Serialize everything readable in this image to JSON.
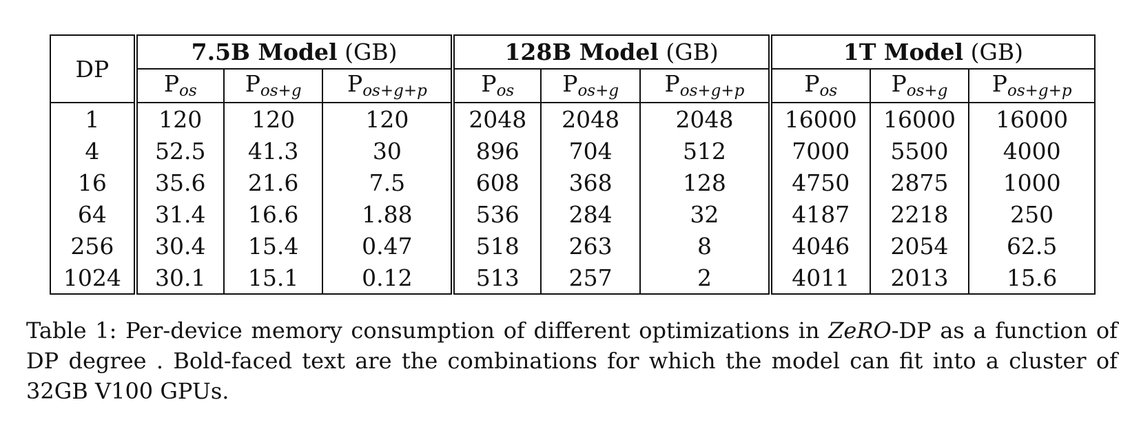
{
  "table": {
    "dp_header": "DP",
    "groups": [
      {
        "name": "7.5B Model",
        "unit": "(GB)"
      },
      {
        "name": "128B Model",
        "unit": "(GB)"
      },
      {
        "name": "1T Model",
        "unit": "(GB)"
      }
    ],
    "sub_headers": [
      {
        "base": "P",
        "sub": "os"
      },
      {
        "base": "P",
        "sub": "os+g"
      },
      {
        "base": "P",
        "sub": "os+g+p"
      }
    ],
    "rows": [
      {
        "dp": "1",
        "cells": [
          "120",
          "120",
          "120",
          "2048",
          "2048",
          "2048",
          "16000",
          "16000",
          "16000"
        ],
        "bold": []
      },
      {
        "dp": "4",
        "cells": [
          "52.5",
          "41.3",
          "30",
          "896",
          "704",
          "512",
          "7000",
          "5500",
          "4000"
        ],
        "bold": [
          2
        ]
      },
      {
        "dp": "16",
        "cells": [
          "35.6",
          "21.6",
          "7.5",
          "608",
          "368",
          "128",
          "4750",
          "2875",
          "1000"
        ],
        "bold": [
          1
        ]
      },
      {
        "dp": "64",
        "cells": [
          "31.4",
          "16.6",
          "1.88",
          "536",
          "284",
          "32",
          "4187",
          "2218",
          "250"
        ],
        "bold": [
          0,
          5
        ]
      },
      {
        "dp": "256",
        "cells": [
          "30.4",
          "15.4",
          "0.47",
          "518",
          "263",
          "8",
          "4046",
          "2054",
          "62.5"
        ],
        "bold": []
      },
      {
        "dp": "1024",
        "cells": [
          "30.1",
          "15.1",
          "0.12",
          "513",
          "257",
          "2",
          "4011",
          "2013",
          "15.6"
        ],
        "bold": [
          8
        ]
      }
    ]
  },
  "caption": {
    "prefix": "Table 1: Per-device memory consumption of different optimizations in ",
    "emph": "ZeRO",
    "suffix": "-DP as a function of DP degree . Bold-faced text are the combinations for which the model can fit into a cluster of 32GB V100 GPUs."
  }
}
